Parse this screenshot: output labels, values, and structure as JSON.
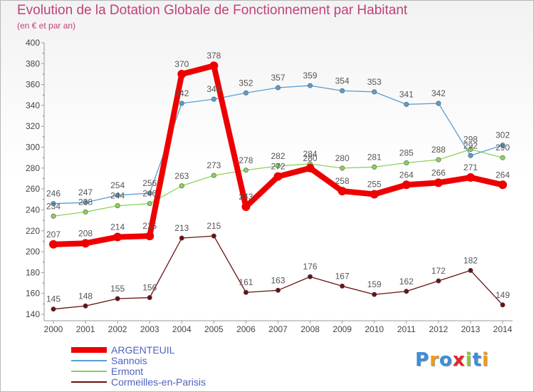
{
  "chart_data": {
    "type": "line",
    "title": "Evolution de la Dotation Globale de Fonctionnement par Habitant",
    "subtitle": "(en € et par an)",
    "xlabel": "",
    "ylabel": "",
    "x": [
      "2000",
      "2001",
      "2002",
      "2003",
      "2004",
      "2005",
      "2006",
      "2007",
      "2008",
      "2009",
      "2010",
      "2011",
      "2012",
      "2013",
      "2014"
    ],
    "ylim": [
      140,
      400
    ],
    "yticks": [
      140,
      160,
      180,
      200,
      220,
      240,
      260,
      280,
      300,
      320,
      340,
      360,
      380,
      400
    ],
    "grid": false,
    "legend_position": "bottom-left",
    "series": [
      {
        "name": "ARGENTEUIL",
        "color": "#ee0000",
        "values": [
          207,
          208,
          214,
          215,
          370,
          378,
          243,
          272,
          280,
          258,
          255,
          264,
          266,
          271,
          264
        ]
      },
      {
        "name": "Sannois",
        "color": "#5a9fd0",
        "values": [
          246,
          247,
          254,
          256,
          342,
          346,
          352,
          357,
          359,
          354,
          353,
          341,
          342,
          292,
          302
        ]
      },
      {
        "name": "Ermont",
        "color": "#8ed15a",
        "values": [
          234,
          238,
          244,
          246,
          263,
          273,
          278,
          282,
          284,
          280,
          281,
          285,
          288,
          298,
          290
        ]
      },
      {
        "name": "Cormeilles-en-Parisis",
        "color": "#6b1010",
        "values": [
          145,
          148,
          155,
          156,
          213,
          215,
          161,
          163,
          176,
          167,
          159,
          162,
          172,
          182,
          149
        ]
      }
    ]
  },
  "logo": {
    "letters": [
      "P",
      "r",
      "o",
      "x",
      "i",
      "t",
      "i"
    ],
    "colors": [
      "#3a8fd8",
      "#f39a1b",
      "#3a8fd8",
      "#e2282a",
      "#8cc63f",
      "#3a8fd8",
      "#f39a1b"
    ]
  }
}
